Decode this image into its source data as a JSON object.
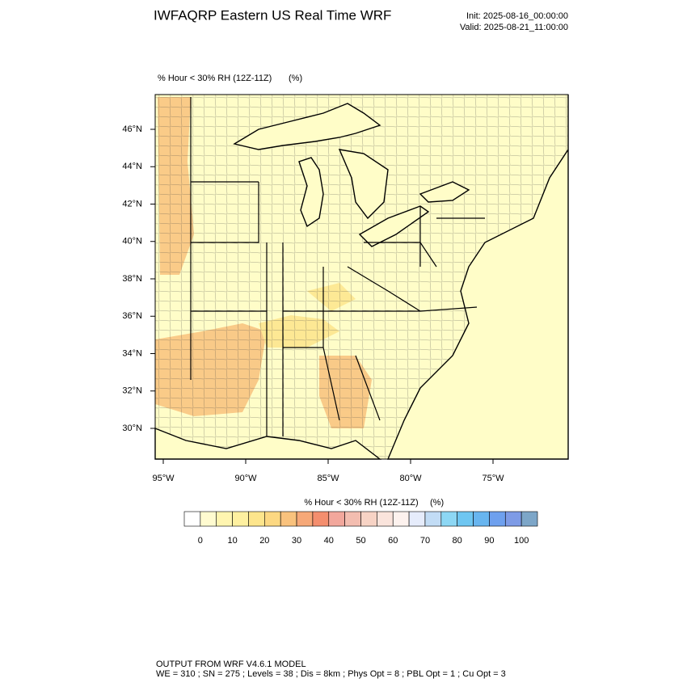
{
  "header": {
    "title": "IWFAQRP Eastern US Real Time WRF",
    "init": "Init: 2025-08-16_00:00:00",
    "valid": "Valid: 2025-08-21_11:00:00"
  },
  "map": {
    "field_label": "% Hour < 30% RH (12Z-11Z)",
    "units": "(%)",
    "lat_labels": [
      "46°N",
      "44°N",
      "42°N",
      "40°N",
      "38°N",
      "36°N",
      "34°N",
      "32°N",
      "30°N"
    ],
    "lon_labels": [
      "95°W",
      "90°W",
      "85°W",
      "80°W",
      "75°W"
    ]
  },
  "colorbar": {
    "title": "% Hour < 30% RH (12Z-11Z)",
    "units": "(%)",
    "labels": [
      0,
      10,
      20,
      30,
      40,
      50,
      60,
      70,
      80,
      90,
      100
    ],
    "colors": [
      "#ffffff",
      "#fffbd0",
      "#fff5b0",
      "#fef0a0",
      "#fde58c",
      "#fcd882",
      "#f9c27d",
      "#f6a878",
      "#f48e6e",
      "#f2a79c",
      "#f3bdb0",
      "#f7d3c5",
      "#fae4dc",
      "#fdf2ee",
      "#e6ecfb",
      "#c2dcf5",
      "#8dd7f4",
      "#6ec6f1",
      "#68b5ef",
      "#6ea0ee",
      "#7e9be6",
      "#7da6c8"
    ]
  },
  "footer": {
    "line1": "OUTPUT FROM WRF V4.6.1 MODEL",
    "line2": "WE = 310 ; SN = 275 ; Levels = 38 ; Dis = 8km ; Phys Opt = 8 ; PBL Opt = 1 ; Cu Opt = 3"
  }
}
